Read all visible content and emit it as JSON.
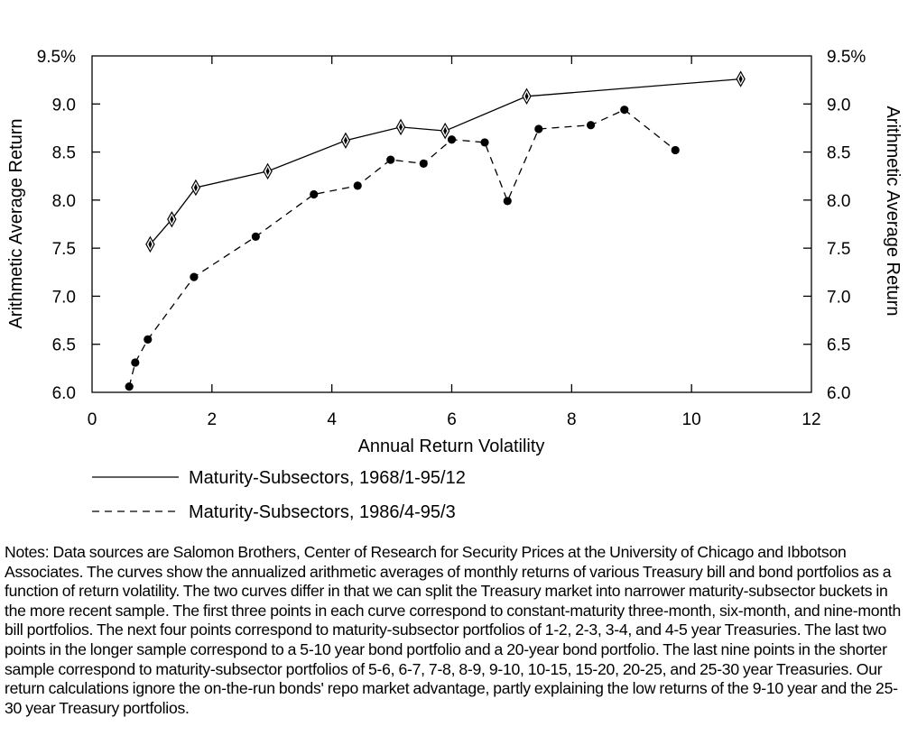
{
  "chart_data": {
    "type": "line",
    "xlabel": "Annual Return Volatility",
    "ylabel": "Arithmetic Average Return",
    "ylabel_right": "Arithmetic Average Return",
    "xlim": [
      0,
      12
    ],
    "ylim": [
      6.0,
      9.5
    ],
    "x_ticks": [
      0,
      2,
      4,
      6,
      8,
      10,
      12
    ],
    "x_tick_labels": [
      "0",
      "2",
      "4",
      "6",
      "8",
      "10",
      "12"
    ],
    "y_ticks": [
      6.0,
      6.5,
      7.0,
      7.5,
      8.0,
      8.5,
      9.0,
      9.5
    ],
    "y_tick_labels": [
      "6.0",
      "6.5",
      "7.0",
      "7.5",
      "8.0",
      "8.5",
      "9.0",
      "9.5%"
    ],
    "grid": false,
    "legend_position": "bottom",
    "series": [
      {
        "name": "Maturity-Subsectors, 1968/1-95/12",
        "line_style": "solid",
        "marker": "diamond",
        "points": [
          [
            0.97,
            7.54
          ],
          [
            1.33,
            7.8
          ],
          [
            1.73,
            8.13
          ],
          [
            2.93,
            8.3
          ],
          [
            4.23,
            8.62
          ],
          [
            5.15,
            8.76
          ],
          [
            5.89,
            8.72
          ],
          [
            7.25,
            9.08
          ],
          [
            10.82,
            9.26
          ]
        ]
      },
      {
        "name": "Maturity-Subsectors, 1986/4-95/3",
        "line_style": "dashed",
        "marker": "circle",
        "points": [
          [
            0.62,
            6.06
          ],
          [
            0.72,
            6.31
          ],
          [
            0.93,
            6.55
          ],
          [
            1.7,
            7.2
          ],
          [
            2.73,
            7.62
          ],
          [
            3.7,
            8.06
          ],
          [
            4.43,
            8.15
          ],
          [
            4.98,
            8.42
          ],
          [
            5.53,
            8.38
          ],
          [
            6.0,
            8.63
          ],
          [
            6.55,
            8.6
          ],
          [
            6.93,
            7.99
          ],
          [
            7.45,
            8.74
          ],
          [
            8.32,
            8.78
          ],
          [
            8.88,
            8.94
          ],
          [
            9.73,
            8.52
          ]
        ]
      }
    ]
  },
  "notes": "Notes: Data sources are Salomon Brothers, Center of Research for Security Prices at the University of Chicago and Ibbotson Associates. The curves show the annualized arithmetic averages of monthly returns of various Treasury bill and bond portfolios as a function of return volatility. The two curves differ in that we can split the Treasury market into narrower maturity-subsector buckets in the more recent sample. The first three points in each curve correspond to constant-maturity three-month, six-month, and nine-month bill portfolios. The next four points correspond to maturity-subsector portfolios of 1-2, 2-3, 3-4, and 4-5 year Treasuries. The last two points in the longer sample correspond to a 5-10 year bond portfolio and a 20-year bond portfolio. The last nine points in the shorter sample correspond to maturity-subsector portfolios of 5-6, 6-7, 7-8, 8-9, 9-10, 10-15, 15-20, 20-25, and 25-30 year Treasuries. Our return calculations ignore the on-the-run bonds' repo market advantage, partly explaining the low returns of the 9-10 year and the 25-30 year Treasury portfolios."
}
